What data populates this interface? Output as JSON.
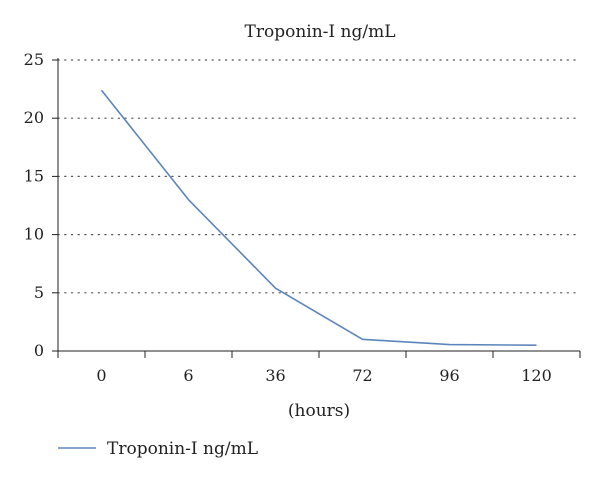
{
  "chart_data": {
    "type": "line",
    "title": "Troponin-I ng/mL",
    "xlabel": "(hours)",
    "ylabel": "",
    "categories": [
      "0",
      "6",
      "36",
      "72",
      "96",
      "120"
    ],
    "yticks": [
      "0",
      "5",
      "10",
      "15",
      "20",
      "25"
    ],
    "ylim": [
      0,
      25
    ],
    "grid": true,
    "legend_position": "bottom-left",
    "series": [
      {
        "name": "Troponin-I ng/mL",
        "values": [
          22.4,
          13.0,
          5.4,
          1.0,
          0.55,
          0.5
        ],
        "color": "#5b86bb"
      }
    ]
  }
}
